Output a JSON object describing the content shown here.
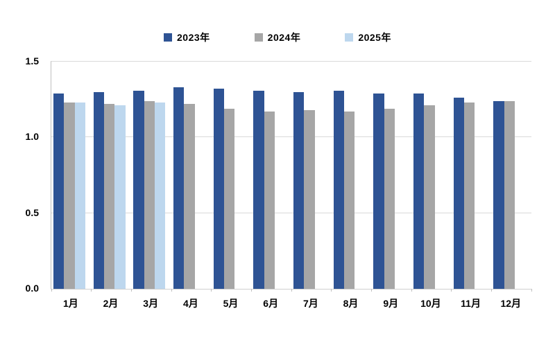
{
  "chart_data": {
    "type": "bar",
    "title": "",
    "xlabel": "",
    "ylabel": "",
    "categories": [
      "1月",
      "2月",
      "3月",
      "4月",
      "5月",
      "6月",
      "7月",
      "8月",
      "9月",
      "10月",
      "11月",
      "12月"
    ],
    "series": [
      {
        "name": "2023年",
        "color": "#2E5394",
        "values": [
          1.29,
          1.3,
          1.31,
          1.33,
          1.32,
          1.31,
          1.3,
          1.31,
          1.29,
          1.29,
          1.26,
          1.24
        ]
      },
      {
        "name": "2024年",
        "color": "#A6A6A6",
        "values": [
          1.23,
          1.22,
          1.24,
          1.22,
          1.19,
          1.17,
          1.18,
          1.17,
          1.19,
          1.21,
          1.23,
          1.24
        ]
      },
      {
        "name": "2025年",
        "color": "#BDD7EE",
        "values": [
          1.23,
          1.21,
          1.23,
          null,
          null,
          null,
          null,
          null,
          null,
          null,
          null,
          null
        ]
      }
    ],
    "ylim": [
      0,
      1.5
    ],
    "ytick_labels": [
      "0.0",
      "0.5",
      "1.0",
      "1.5"
    ],
    "grid": true,
    "legend_position": "top-center",
    "colors": {
      "gridline": "#D9D9D9",
      "axis": "#BFBFBF",
      "text": "#000000",
      "background": "#FFFFFF"
    }
  }
}
